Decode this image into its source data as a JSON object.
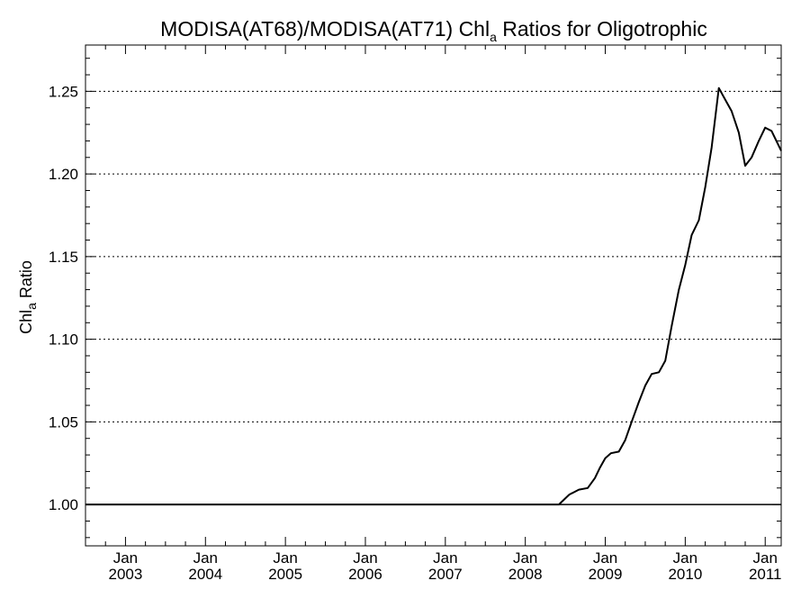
{
  "chart_data": {
    "type": "line",
    "title": {
      "main_prefix": "MODISA(AT68)/MODISA(AT71)  Chl",
      "main_sub": "a",
      "main_suffix": " Ratios for Oligotrophic"
    },
    "ylabel": {
      "prefix": "Chl",
      "sub": "a",
      "suffix": " Ratio"
    },
    "xlim": [
      2002.5,
      2011.2
    ],
    "ylim": [
      0.975,
      1.278
    ],
    "y_ticks": [
      {
        "value": 1.0,
        "label": "1.00"
      },
      {
        "value": 1.05,
        "label": "1.05"
      },
      {
        "value": 1.1,
        "label": "1.10"
      },
      {
        "value": 1.15,
        "label": "1.15"
      },
      {
        "value": 1.2,
        "label": "1.20"
      },
      {
        "value": 1.25,
        "label": "1.25"
      }
    ],
    "x_ticks": [
      {
        "value": 2003,
        "month": "Jan",
        "year": "2003"
      },
      {
        "value": 2004,
        "month": "Jan",
        "year": "2004"
      },
      {
        "value": 2005,
        "month": "Jan",
        "year": "2005"
      },
      {
        "value": 2006,
        "month": "Jan",
        "year": "2006"
      },
      {
        "value": 2007,
        "month": "Jan",
        "year": "2007"
      },
      {
        "value": 2008,
        "month": "Jan",
        "year": "2008"
      },
      {
        "value": 2009,
        "month": "Jan",
        "year": "2009"
      },
      {
        "value": 2010,
        "month": "Jan",
        "year": "2010"
      },
      {
        "value": 2011,
        "month": "Jan",
        "year": "2011"
      }
    ],
    "grid": "horizontal-dotted",
    "reference_line": 1.0,
    "series": [
      {
        "color": "#000000",
        "x": [
          2002.5,
          2008.42,
          2008.55,
          2008.67,
          2008.78,
          2008.87,
          2008.93,
          2009.0,
          2009.07,
          2009.17,
          2009.25,
          2009.33,
          2009.42,
          2009.5,
          2009.58,
          2009.67,
          2009.75,
          2009.83,
          2009.92,
          2010.0,
          2010.08,
          2010.17,
          2010.25,
          2010.33,
          2010.42,
          2010.5,
          2010.58,
          2010.67,
          2010.75,
          2010.83,
          2010.92,
          2011.0,
          2011.08,
          2011.2
        ],
        "y": [
          1.0,
          1.0,
          1.006,
          1.009,
          1.01,
          1.016,
          1.022,
          1.028,
          1.031,
          1.032,
          1.039,
          1.05,
          1.062,
          1.072,
          1.079,
          1.08,
          1.087,
          1.108,
          1.13,
          1.145,
          1.163,
          1.172,
          1.192,
          1.216,
          1.252,
          1.245,
          1.238,
          1.225,
          1.205,
          1.21,
          1.22,
          1.228,
          1.226,
          1.214
        ]
      }
    ]
  }
}
